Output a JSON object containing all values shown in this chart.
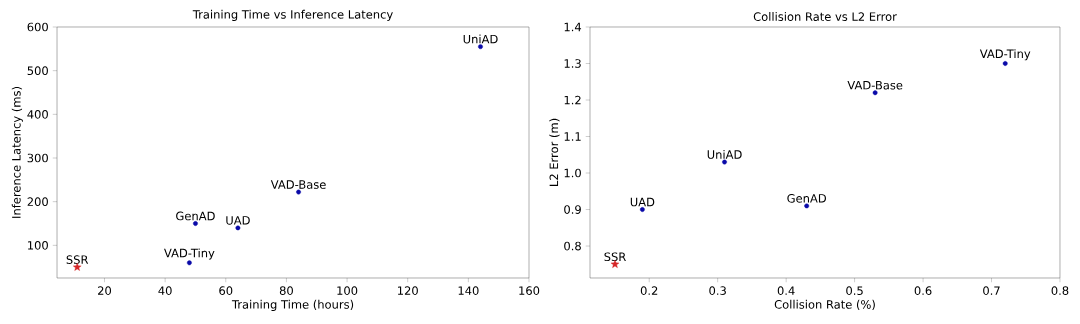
{
  "chart_data": [
    {
      "type": "scatter",
      "title": "Training Time vs Inference Latency",
      "xlabel": "Training Time (hours)",
      "ylabel": "Inference Latency (ms)",
      "xlim": [
        4.35,
        160
      ],
      "ylim": [
        25.25,
        600
      ],
      "xticks": [
        20,
        40,
        60,
        80,
        100,
        120,
        140,
        160
      ],
      "yticks": [
        100,
        200,
        300,
        400,
        500,
        600
      ],
      "grid": false,
      "series": [
        {
          "color": "#d62728",
          "marker": "star",
          "x": [
            11
          ],
          "values": [
            50
          ]
        },
        {
          "color": "#0a0aa8",
          "marker": "circle",
          "x": [
            48,
            50,
            64,
            84,
            144
          ],
          "values": [
            60,
            150,
            140,
            222,
            555
          ]
        }
      ],
      "annotations": [
        {
          "text": "SSR",
          "x": 11,
          "y": 50
        },
        {
          "text": "VAD-Tiny",
          "x": 48,
          "y": 60
        },
        {
          "text": "GenAD",
          "x": 50,
          "y": 150
        },
        {
          "text": "UAD",
          "x": 64,
          "y": 140
        },
        {
          "text": "VAD-Base",
          "x": 84,
          "y": 222
        },
        {
          "text": "UniAD",
          "x": 144,
          "y": 555
        }
      ]
    },
    {
      "type": "scatter",
      "title": "Collision Rate vs L2 Error",
      "xlabel": "Collision Rate (%)",
      "ylabel": "L2 Error (m)",
      "xlim": [
        0.1135,
        0.8
      ],
      "ylim": [
        0.7125,
        1.4
      ],
      "xticks": [
        0.2,
        0.3,
        0.4,
        0.5,
        0.6,
        0.7,
        0.8
      ],
      "yticks": [
        0.8,
        0.9,
        {
          "value": 1.0,
          "label": "1.0"
        },
        1.1,
        1.2,
        1.3,
        1.4
      ],
      "grid": false,
      "series": [
        {
          "color": "#d62728",
          "marker": "star",
          "x": [
            0.15
          ],
          "values": [
            0.75
          ]
        },
        {
          "color": "#0a0aa8",
          "marker": "circle",
          "x": [
            0.19,
            0.31,
            0.43,
            0.53,
            0.72
          ],
          "values": [
            0.9,
            1.03,
            0.91,
            1.22,
            1.3
          ]
        }
      ],
      "annotations": [
        {
          "text": "SSR",
          "x": 0.15,
          "y": 0.75
        },
        {
          "text": "UAD",
          "x": 0.19,
          "y": 0.9
        },
        {
          "text": "UniAD",
          "x": 0.31,
          "y": 1.03
        },
        {
          "text": "GenAD",
          "x": 0.43,
          "y": 0.91
        },
        {
          "text": "VAD-Base",
          "x": 0.53,
          "y": 1.22
        },
        {
          "text": "VAD-Tiny",
          "x": 0.72,
          "y": 1.3
        }
      ]
    }
  ]
}
